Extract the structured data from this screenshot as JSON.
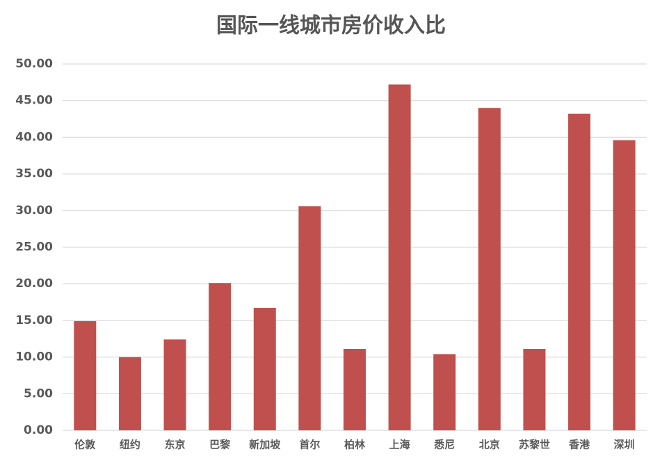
{
  "chart_data": {
    "type": "bar",
    "title": "国际一线城市房价收入比",
    "categories": [
      "伦敦",
      "纽约",
      "东京",
      "巴黎",
      "新加坡",
      "首尔",
      "柏林",
      "上海",
      "悉尼",
      "北京",
      "苏黎世",
      "香港",
      "深圳"
    ],
    "values": [
      14.9,
      10.0,
      12.4,
      20.1,
      16.7,
      30.6,
      11.1,
      47.2,
      10.4,
      44.0,
      11.1,
      43.2,
      39.6
    ],
    "color": "#c0504d",
    "ylim": [
      0,
      50
    ],
    "yticks": [
      {
        "value": 0,
        "label": "0.00"
      },
      {
        "value": 5,
        "label": "5.00"
      },
      {
        "value": 10,
        "label": "10.00"
      },
      {
        "value": 15,
        "label": "15.00"
      },
      {
        "value": 20,
        "label": "20.00"
      },
      {
        "value": 25,
        "label": "25.00"
      },
      {
        "value": 30,
        "label": "30.00"
      },
      {
        "value": 35,
        "label": "35.00"
      },
      {
        "value": 40,
        "label": "40.00"
      },
      {
        "value": 45,
        "label": "45.00"
      },
      {
        "value": 50,
        "label": "50.00"
      }
    ],
    "grid": true
  }
}
